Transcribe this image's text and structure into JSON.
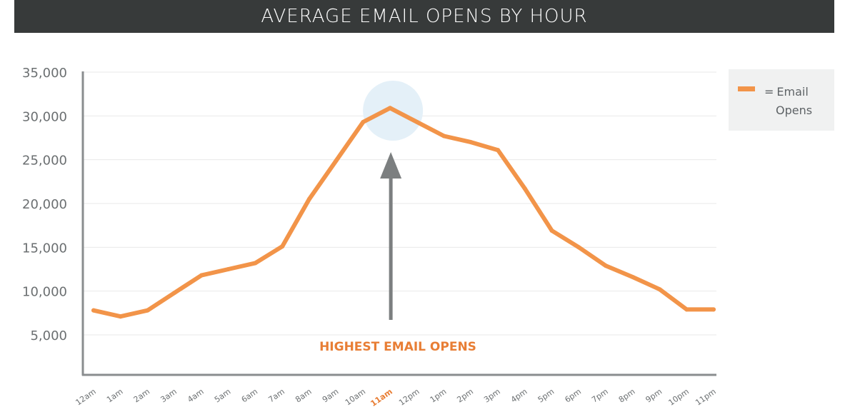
{
  "chart_data": {
    "type": "line",
    "title": "AVERAGE EMAIL OPENS BY HOUR",
    "categories": [
      "12am",
      "1am",
      "2am",
      "3am",
      "4am",
      "5am",
      "6am",
      "7am",
      "8am",
      "9am",
      "10am",
      "11am",
      "12pm",
      "1pm",
      "2pm",
      "3pm",
      "4pm",
      "5pm",
      "6pm",
      "7pm",
      "8pm",
      "9pm",
      "10pm",
      "11pm"
    ],
    "highlight_category": "11am",
    "series": [
      {
        "name": "Email Opens",
        "values": [
          7800,
          7100,
          7800,
          9800,
          11800,
          12500,
          13200,
          15100,
          20500,
          24900,
          29300,
          30900,
          29300,
          27700,
          27000,
          26100,
          21700,
          16900,
          15000,
          12900,
          11600,
          10200,
          7900,
          7900
        ]
      }
    ],
    "y_ticks": [
      "5,000",
      "10,000",
      "15,000",
      "20,000",
      "25,000",
      "30,000",
      "35,000"
    ],
    "y_tick_values": [
      5000,
      10000,
      15000,
      20000,
      25000,
      30000,
      35000
    ],
    "ylim": [
      0,
      35000
    ],
    "grid": true,
    "legend": {
      "position": "right",
      "prefix": "=",
      "label_line1": "Email",
      "label_line2": "Opens"
    },
    "annotation": {
      "text": "HIGHEST EMAIL OPENS",
      "target_category": "11am"
    },
    "colors": {
      "line": "#f29449",
      "title_bar": "#373a3a",
      "axis": "#8a8d8f",
      "grid": "#e9eaea",
      "highlight_circle": "#e4f0f8",
      "arrow": "#7c7f80",
      "annotation_text": "#e87e35",
      "tick_text": "#6b6f71",
      "highlight_tick": "#e87e35"
    }
  }
}
